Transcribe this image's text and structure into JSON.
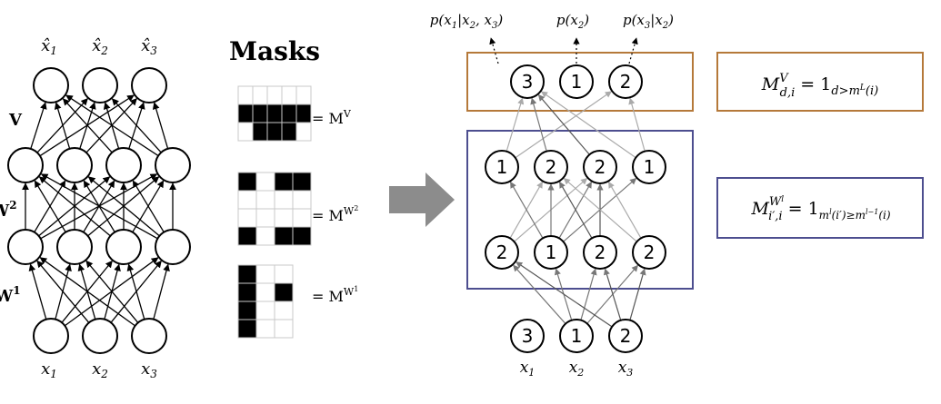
{
  "left_network": {
    "output_labels": [
      "x̂",
      "x̂",
      "x̂"
    ],
    "output_subs": [
      "1",
      "2",
      "3"
    ],
    "input_labels": [
      "x",
      "x",
      "x"
    ],
    "input_subs": [
      "1",
      "2",
      "3"
    ],
    "layer_label_v": "V",
    "layer_label_w2": "W",
    "layer_label_w2_sup": "2",
    "layer_label_w1": "W",
    "layer_label_w1_sup": "1"
  },
  "masks": {
    "title": "Masks",
    "mask_v": {
      "label": "= M",
      "sup": "V",
      "cells": [
        [
          0,
          0,
          0,
          0,
          0
        ],
        [
          1,
          1,
          1,
          1,
          1
        ],
        [
          0,
          1,
          1,
          1,
          0
        ]
      ]
    },
    "mask_w2": {
      "label": "= M",
      "sup": "W",
      "sup2": "2",
      "cells": [
        [
          1,
          0,
          1,
          1
        ],
        [
          0,
          0,
          0,
          0
        ],
        [
          0,
          0,
          0,
          0
        ],
        [
          1,
          0,
          1,
          1
        ]
      ]
    },
    "mask_w1": {
      "label": "= M",
      "sup": "W",
      "sup2": "1",
      "cells": [
        [
          1,
          0,
          0
        ],
        [
          1,
          0,
          1
        ],
        [
          1,
          0,
          0
        ],
        [
          1,
          0,
          0
        ]
      ]
    }
  },
  "made": {
    "output_texts": [
      "p(x",
      "|x",
      ", x",
      ")",
      "p(x",
      ")",
      "p(x",
      "|x",
      ")"
    ],
    "p1": {
      "a": "p(x",
      "s1": "1",
      "b": "|x",
      "s2": "2",
      "c": ", x",
      "s3": "3",
      "d": ")"
    },
    "p2": {
      "a": "p(x",
      "s1": "2",
      "d": ")"
    },
    "p3": {
      "a": "p(x",
      "s1": "3",
      "b": "|x",
      "s2": "2",
      "d": ")"
    },
    "output_nodes": [
      "3",
      "1",
      "2"
    ],
    "hidden2_nodes": [
      "1",
      "2",
      "2",
      "1"
    ],
    "hidden1_nodes": [
      "2",
      "1",
      "2",
      "2"
    ],
    "input_nodes": [
      "3",
      "1",
      "2"
    ],
    "input_labels": [
      "x",
      "x",
      "x"
    ],
    "input_subs": [
      "1",
      "2",
      "3"
    ],
    "output_box_color": "#b5793a",
    "hidden_box_color": "#4d4e8f"
  },
  "formulas": {
    "v": {
      "M": "M",
      "sup": "V",
      "sub": "d,i",
      "eq": " = 1",
      "cond": "d>m",
      "cond_sup": "L",
      "cond_end": "(i)"
    },
    "w": {
      "M": "M",
      "sup": "W",
      "sup_sup": "l",
      "sub": "i′,i",
      "eq": " = 1",
      "cond": "m",
      "cond_sup": "l",
      "cond_mid": "(i′)≥m",
      "cond_sup2": "l−1",
      "cond_end": "(i)"
    }
  }
}
